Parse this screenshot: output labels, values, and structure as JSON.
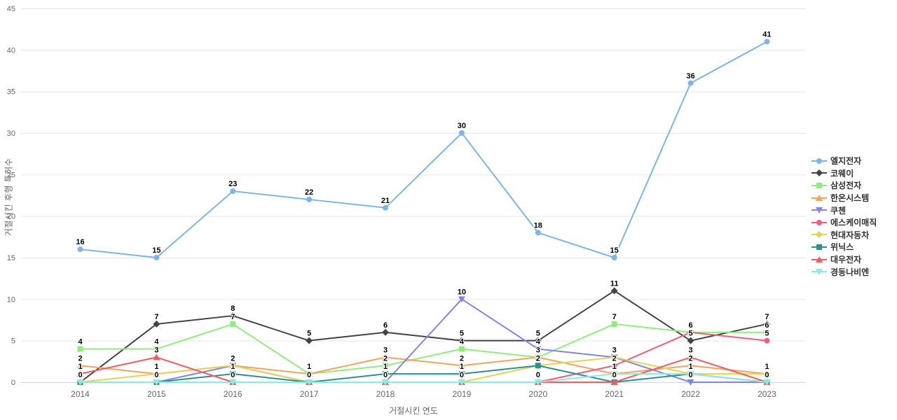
{
  "chart_data": {
    "type": "line",
    "title": "",
    "xlabel": "거절시킨 연도",
    "ylabel": "거절시킨 후행 특허수",
    "categories": [
      "2014",
      "2015",
      "2016",
      "2017",
      "2018",
      "2019",
      "2020",
      "2021",
      "2022",
      "2023"
    ],
    "ylim": [
      0,
      45
    ],
    "ytick_step": 5,
    "yticks": [
      0,
      5,
      10,
      15,
      20,
      25,
      30,
      35,
      40,
      45
    ],
    "grid": "horizontal-only",
    "legend_position": "right",
    "data_labels": "on",
    "series": [
      {
        "name": "엘지전자",
        "color": "#7cb5ec",
        "marker": "circle",
        "values": [
          16,
          15,
          23,
          22,
          21,
          30,
          18,
          15,
          36,
          41
        ]
      },
      {
        "name": "코웨이",
        "color": "#434348",
        "marker": "diamond",
        "values": [
          0,
          7,
          8,
          5,
          6,
          5,
          5,
          11,
          5,
          7
        ]
      },
      {
        "name": "삼성전자",
        "color": "#90ed7d",
        "marker": "square",
        "values": [
          4,
          4,
          7,
          1,
          2,
          4,
          3,
          7,
          6,
          6
        ]
      },
      {
        "name": "한온시스템",
        "color": "#f7a35c",
        "marker": "triangle",
        "values": [
          2,
          1,
          2,
          1,
          3,
          2,
          3,
          1,
          2,
          1
        ]
      },
      {
        "name": "쿠첸",
        "color": "#8085e9",
        "marker": "triangle-down",
        "values": [
          0,
          0,
          2,
          0,
          0,
          10,
          4,
          3,
          0,
          0
        ]
      },
      {
        "name": "에스케이매직",
        "color": "#f15c80",
        "marker": "circle",
        "values": [
          0,
          0,
          0,
          0,
          0,
          0,
          0,
          2,
          6,
          5
        ]
      },
      {
        "name": "현대자동차",
        "color": "#e4d354",
        "marker": "diamond",
        "values": [
          0,
          1,
          2,
          0,
          0,
          0,
          2,
          3,
          1,
          1
        ]
      },
      {
        "name": "위닉스",
        "color": "#2b908f",
        "marker": "square",
        "values": [
          0,
          0,
          1,
          0,
          1,
          1,
          2,
          0,
          1,
          0
        ]
      },
      {
        "name": "대우전자",
        "color": "#f45b5b",
        "marker": "triangle",
        "values": [
          1,
          3,
          0,
          0,
          0,
          0,
          0,
          0,
          3,
          0
        ]
      },
      {
        "name": "경동나비엔",
        "color": "#91e8e1",
        "marker": "triangle-down",
        "values": [
          0,
          0,
          0,
          0,
          0,
          0,
          0,
          1,
          1,
          0
        ]
      }
    ],
    "colors": {
      "gridline": "#e6e6e6",
      "axis_line": "#ccd6eb",
      "tick_label": "#666666",
      "axis_title": "#666666",
      "data_label": "#000000",
      "legend_text": "#333333",
      "background": "#ffffff"
    }
  }
}
